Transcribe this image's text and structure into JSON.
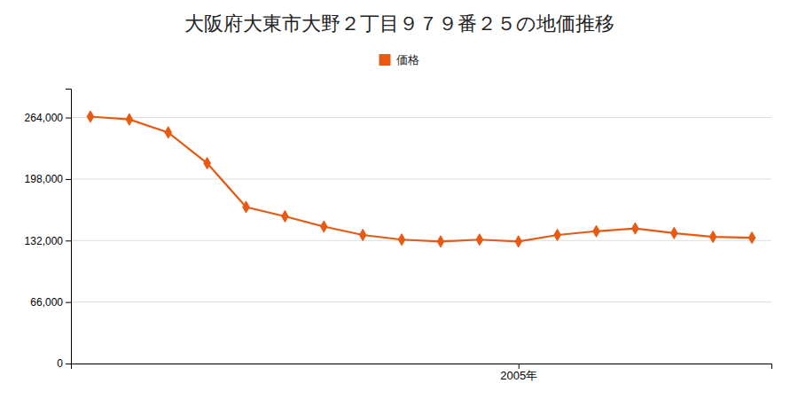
{
  "chart_data": {
    "type": "line",
    "title": "大阪府大東市大野２丁目９７９番２５の地価推移",
    "x": [
      1994,
      1995,
      1996,
      1997,
      1998,
      1999,
      2000,
      2001,
      2002,
      2003,
      2004,
      2005,
      2006,
      2007,
      2008,
      2009,
      2010,
      2011
    ],
    "series": [
      {
        "name": "価格",
        "color": "#e85a12",
        "marker": "diamond",
        "values": [
          265000,
          262000,
          248000,
          215000,
          168000,
          158000,
          147000,
          138000,
          133000,
          131000,
          133000,
          131000,
          138000,
          142000,
          145000,
          140000,
          136000,
          135000
        ]
      }
    ],
    "xlim": [
      1993.5,
      2011.5
    ],
    "xticks": [
      {
        "value": 2005,
        "label": "2005年"
      }
    ],
    "ylim": [
      0,
      295000
    ],
    "yticks": [
      0,
      {
        "value": 66000,
        "label": "66,000"
      },
      {
        "value": 132000,
        "label": "132,000"
      },
      {
        "value": 198000,
        "label": "198,000"
      },
      {
        "value": 264000,
        "label": "264,000"
      }
    ],
    "grid": true,
    "legend": "top"
  }
}
